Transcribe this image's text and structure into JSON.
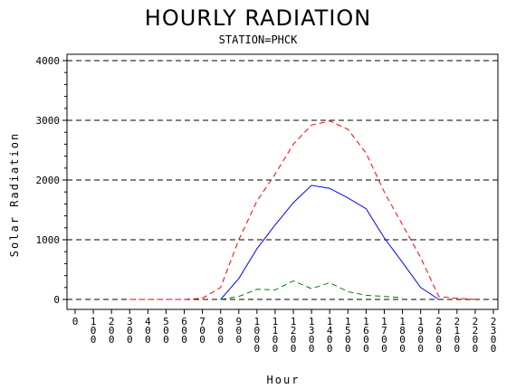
{
  "chart_data": {
    "type": "line",
    "title": "HOURLY RADIATION",
    "subtitle": "STATION=PHCK",
    "xlabel": "Hour",
    "ylabel": "Solar Radiation",
    "x_tick_labels": [
      "0",
      "100",
      "200",
      "300",
      "400",
      "500",
      "600",
      "700",
      "800",
      "900",
      "1000",
      "1100",
      "1200",
      "1300",
      "1400",
      "1500",
      "1600",
      "1700",
      "1800",
      "1900",
      "2000",
      "2100",
      "2200",
      "2300"
    ],
    "y_ticks": [
      0,
      1000,
      2000,
      3000,
      4000
    ],
    "y_tick_labels": [
      "0",
      "1000",
      "2000",
      "3000",
      "4000"
    ],
    "ylim": [
      0,
      4000
    ],
    "xlim": [
      0,
      2300
    ],
    "grid": "horizontal dashed",
    "series": [
      {
        "color": "#ff0000",
        "dash": "dashed",
        "x": [
          300,
          400,
          500,
          600,
          700,
          800,
          900,
          1000,
          1100,
          1200,
          1300,
          1400,
          1500,
          1600,
          1700,
          1800,
          1900,
          2000,
          2100,
          2200
        ],
        "y": [
          0,
          0,
          0,
          0,
          20,
          200,
          1000,
          1650,
          2100,
          2600,
          2920,
          2990,
          2850,
          2450,
          1800,
          1250,
          700,
          50,
          20,
          0
        ]
      },
      {
        "color": "#0000ff",
        "dash": "solid",
        "x": [
          800,
          900,
          1000,
          1100,
          1200,
          1300,
          1400,
          1500,
          1600,
          1700,
          1800,
          1900,
          2000
        ],
        "y": [
          0,
          350,
          850,
          1250,
          1620,
          1910,
          1860,
          1700,
          1520,
          1030,
          620,
          200,
          0
        ]
      },
      {
        "color": "#008000",
        "dash": "dashed",
        "x": [
          800,
          900,
          1000,
          1100,
          1200,
          1300,
          1400,
          1500,
          1600,
          1700,
          1800
        ],
        "y": [
          0,
          50,
          170,
          160,
          310,
          180,
          280,
          130,
          70,
          50,
          30
        ]
      }
    ]
  }
}
